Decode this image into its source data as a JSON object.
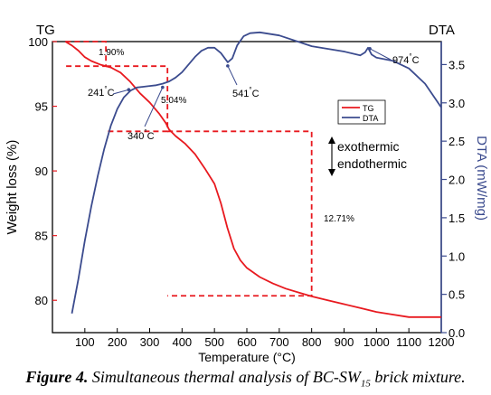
{
  "chart_data": {
    "type": "line",
    "title": "",
    "xlabel": "Temperature (°C)",
    "xlim": [
      0,
      1200
    ],
    "x_ticks": [
      100,
      200,
      300,
      400,
      500,
      600,
      700,
      800,
      900,
      1000,
      1100,
      1200
    ],
    "x_tick_labels": [
      "100",
      "200",
      "300",
      "400",
      "500",
      "600",
      "700",
      "800",
      "900",
      "1000",
      "1100",
      "1200"
    ],
    "left_axis": {
      "label": "Weight loss (%)",
      "corner_label": "TG",
      "ylim": [
        77.5,
        100
      ],
      "ticks": [
        80,
        85,
        90,
        95,
        100
      ],
      "tick_labels": [
        "80",
        "85",
        "90",
        "95",
        "100"
      ],
      "color": "#e8191f"
    },
    "right_axis": {
      "label": "DTA (mW/mg)",
      "corner_label": "DTA",
      "ylim": [
        0.0,
        3.8
      ],
      "ticks": [
        0.0,
        0.5,
        1.0,
        1.5,
        2.0,
        2.5,
        3.0,
        3.5
      ],
      "tick_labels": [
        "0.0",
        "0.5",
        "1.0",
        "1.5",
        "2.0",
        "2.5",
        "3.0",
        "3.5"
      ],
      "color": "#3b4b8e"
    },
    "series": [
      {
        "name": "TG",
        "axis": "left",
        "color": "#e8191f",
        "x": [
          40,
          60,
          80,
          100,
          120,
          150,
          180,
          210,
          240,
          270,
          300,
          330,
          350,
          360,
          380,
          410,
          440,
          470,
          500,
          520,
          540,
          560,
          580,
          600,
          640,
          680,
          720,
          760,
          800,
          850,
          900,
          950,
          1000,
          1050,
          1100,
          1150,
          1200
        ],
        "y": [
          100,
          99.7,
          99.3,
          98.8,
          98.5,
          98.2,
          98.0,
          97.6,
          96.9,
          96.0,
          95.3,
          94.4,
          93.7,
          93.2,
          92.7,
          92.1,
          91.3,
          90.2,
          89.0,
          87.5,
          85.6,
          84.0,
          83.1,
          82.5,
          81.8,
          81.3,
          80.9,
          80.6,
          80.3,
          80.0,
          79.7,
          79.4,
          79.1,
          78.9,
          78.7,
          78.7,
          78.7
        ]
      },
      {
        "name": "DTA",
        "axis": "right",
        "color": "#3b4b8e",
        "x": [
          60,
          80,
          100,
          120,
          140,
          160,
          180,
          200,
          220,
          241,
          260,
          280,
          300,
          320,
          340,
          360,
          380,
          400,
          420,
          440,
          460,
          480,
          500,
          520,
          541,
          555,
          570,
          590,
          610,
          640,
          700,
          800,
          900,
          950,
          965,
          974,
          985,
          1000,
          1050,
          1100,
          1150,
          1200
        ],
        "y": [
          0.25,
          0.7,
          1.2,
          1.65,
          2.05,
          2.4,
          2.7,
          2.92,
          3.07,
          3.16,
          3.2,
          3.21,
          3.22,
          3.23,
          3.25,
          3.28,
          3.33,
          3.4,
          3.5,
          3.6,
          3.68,
          3.72,
          3.72,
          3.65,
          3.53,
          3.58,
          3.75,
          3.87,
          3.91,
          3.92,
          3.88,
          3.74,
          3.67,
          3.62,
          3.66,
          3.72,
          3.63,
          3.59,
          3.55,
          3.45,
          3.25,
          2.94
        ]
      }
    ],
    "legend": {
      "placement": "upper-right",
      "items": [
        {
          "label": "TG",
          "color": "#e8191f"
        },
        {
          "label": "DTA",
          "color": "#3b4b8e"
        }
      ]
    },
    "annotations": [
      {
        "text": "1.90%",
        "color": "#000000"
      },
      {
        "text": "5.04%",
        "color": "#000000"
      },
      {
        "text": "12.71%",
        "color": "#000000"
      },
      {
        "text": "241°C",
        "x": 241,
        "color": "#000000"
      },
      {
        "text": "340°C",
        "x": 340,
        "color": "#000000"
      },
      {
        "text": "541°C",
        "x": 541,
        "color": "#000000"
      },
      {
        "text": "974°C",
        "x": 974,
        "color": "#000000"
      },
      {
        "text": "exothermic",
        "color": "#000000"
      },
      {
        "text": "endothermic",
        "color": "#000000"
      }
    ],
    "mass_loss_steps": [
      {
        "x_start": 40,
        "x_end": 165,
        "y_from": 100,
        "y_to": 98.1
      },
      {
        "x_start": 165,
        "x_end": 355,
        "y_from": 98.1,
        "y_to": 93.06
      },
      {
        "x_start": 355,
        "x_end": 800,
        "y_from": 93.06,
        "y_to": 80.35
      }
    ]
  },
  "caption": {
    "lead": "Figure 4.",
    "text_before": "Simultaneous thermal analysis of BC-SW",
    "subscript": "15",
    "text_after": "brick mixture."
  }
}
